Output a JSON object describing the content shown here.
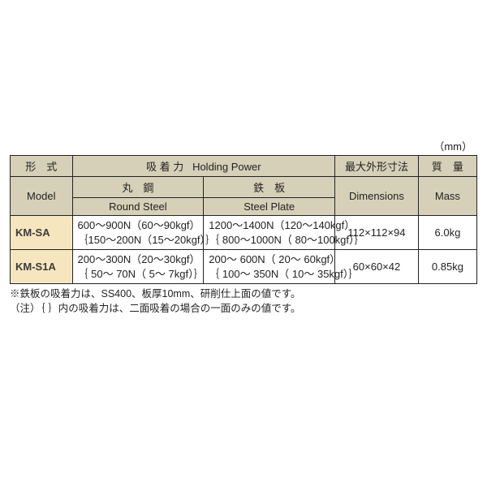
{
  "unit_label": "（mm）",
  "headers": {
    "model_jp": "形　式",
    "model_en": "Model",
    "holding_jp": "吸 着 力",
    "holding_en": "Holding Power",
    "round_jp": "丸　鋼",
    "round_en": "Round Steel",
    "plate_jp": "鉄　板",
    "plate_en": "Steel Plate",
    "dim_jp": "最大外形寸法",
    "dim_en": "Dimensions",
    "mass_jp": "質　量",
    "mass_en": "Mass"
  },
  "rows": [
    {
      "model": "KM-SA",
      "round_l1": "600～900N（60～90kgf）",
      "round_l2": "｛150～200N（15～20kgf）｝",
      "plate_l1": "1200～1400N（120～140kgf）",
      "plate_l2": "｛ 800～1000N（ 80～100kgf）｝",
      "dim": "112×112×94",
      "mass": "6.0kg"
    },
    {
      "model": "KM-S1A",
      "round_l1": "200～300N（20～30kgf）",
      "round_l2": "｛ 50～ 70N（ 5～ 7kgf）｝",
      "plate_l1": "200～ 600N（ 20～ 60kgf）",
      "plate_l2": "｛ 100～ 350N（ 10～ 35kgf）｝",
      "dim": "60×60×42",
      "mass": "0.85kg"
    }
  ],
  "note1": "※鉄板の吸着力は、SS400、板厚10mm、研削仕上面の値です。",
  "note2": "（注）｛ ｝内の吸着力は、二面吸着の場合の一面のみの値です。"
}
